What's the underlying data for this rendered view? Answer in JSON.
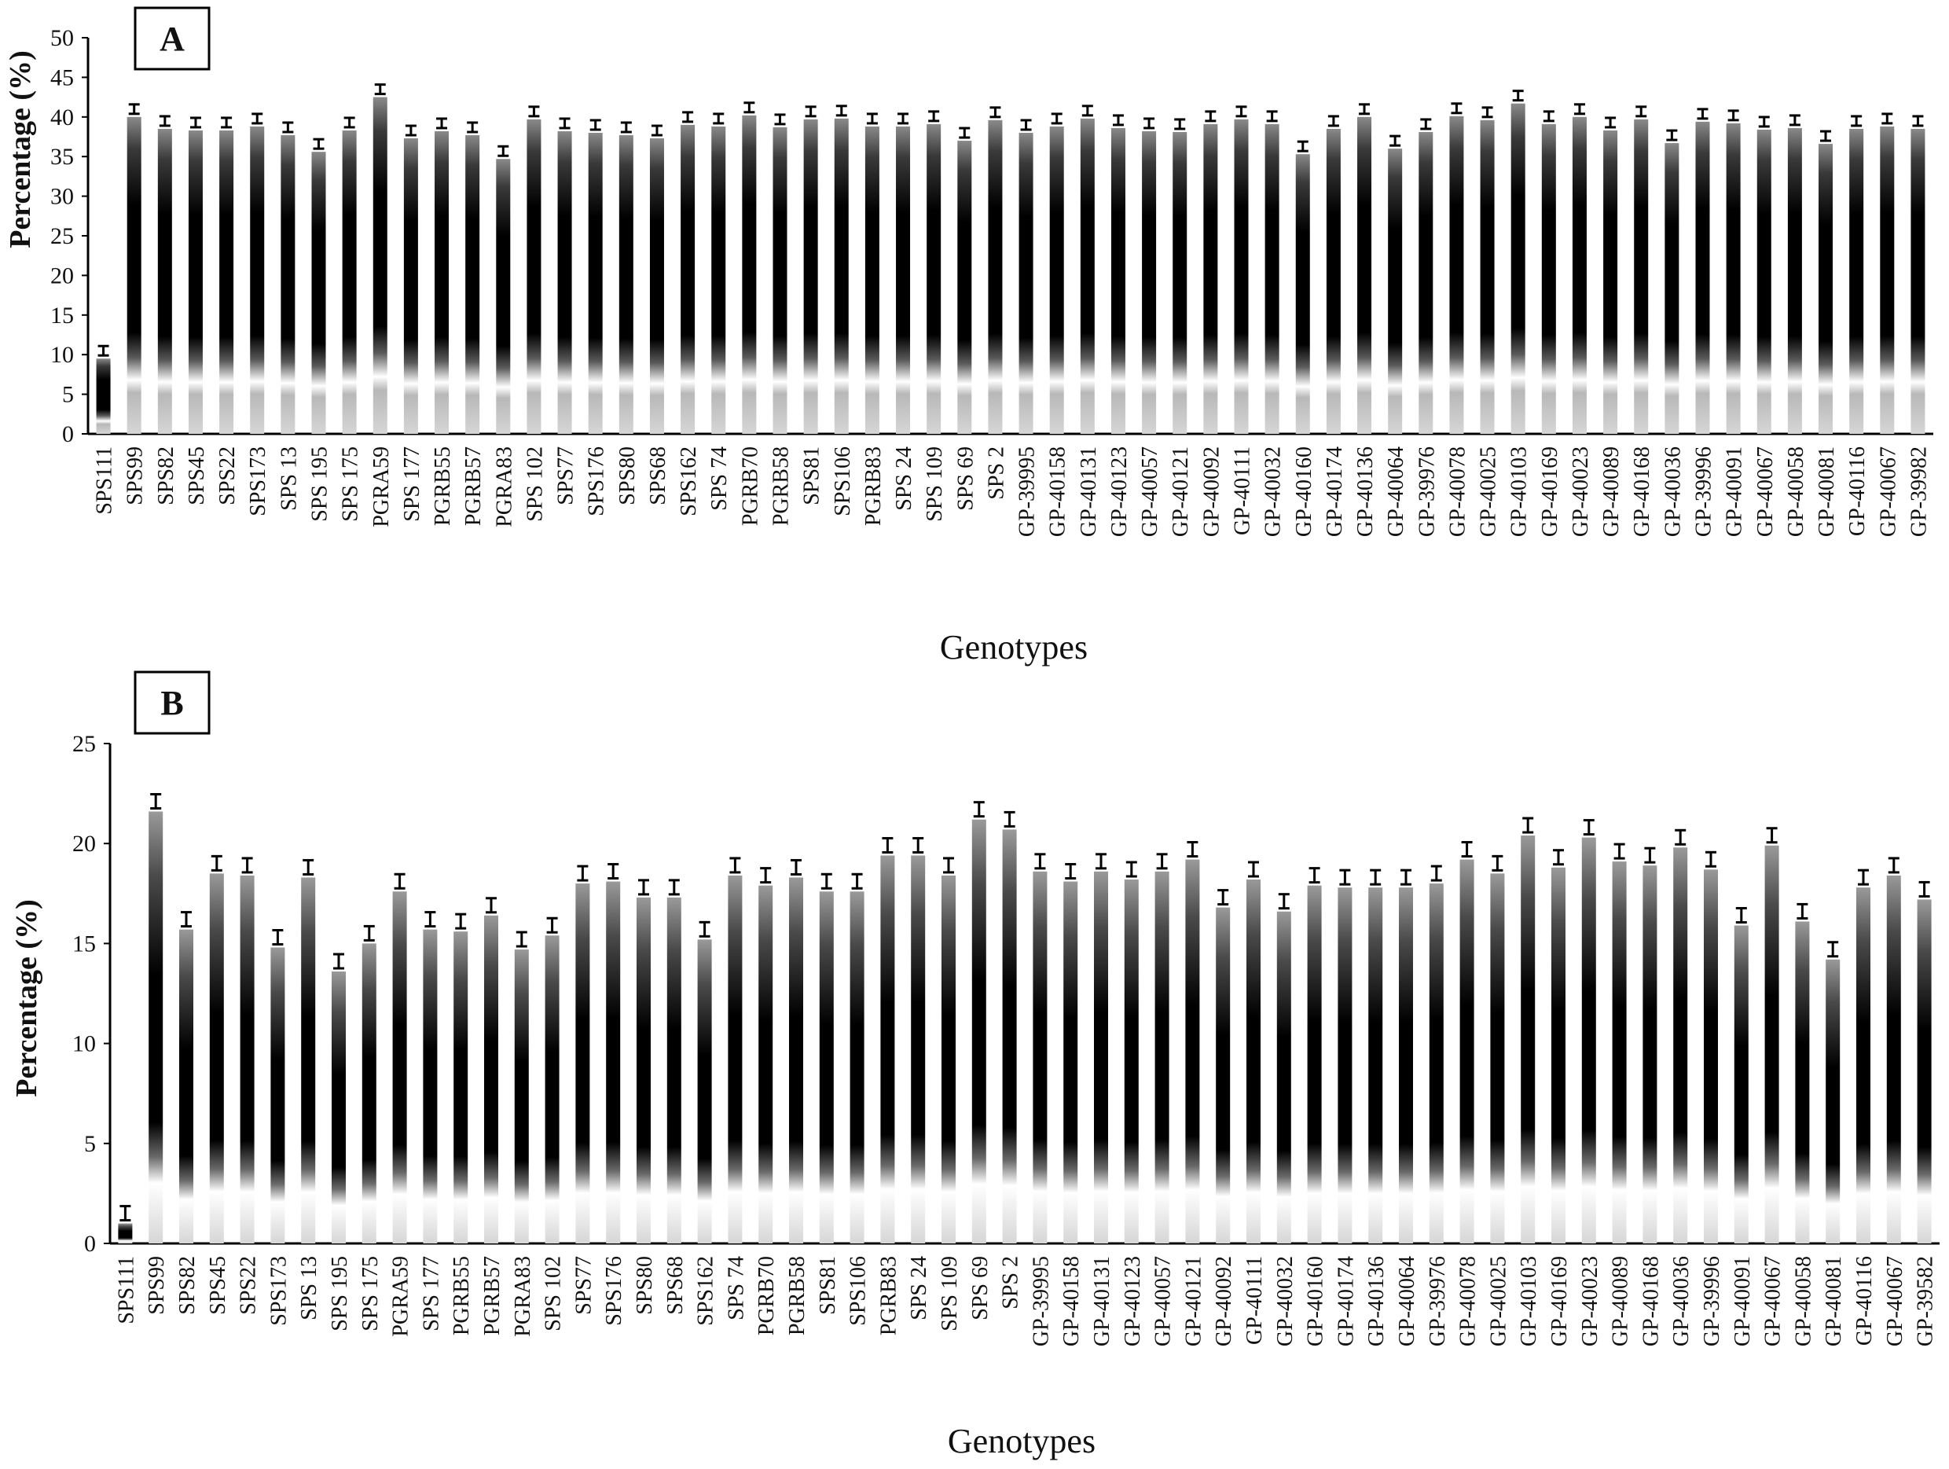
{
  "chart_data": [
    {
      "type": "bar",
      "panel_label": "A",
      "xlabel": "Genotypes",
      "ylabel": "Percentage (%)",
      "ylim": [
        0,
        50
      ],
      "yticks": [
        0,
        5,
        10,
        15,
        20,
        25,
        30,
        35,
        40,
        45,
        50
      ],
      "categories": [
        "SPS111",
        "SPS99",
        "SPS82",
        "SPS45",
        "SPS22",
        "SPS173",
        "SPS 13",
        "SPS 195",
        "SPS 175",
        "PGRA59",
        "SPS 177",
        "PGRB55",
        "PGRB57",
        "PGRA83",
        "SPS 102",
        "SPS77",
        "SPS176",
        "SPS80",
        "SPS68",
        "SPS162",
        "SPS 74",
        "PGRB70",
        "PGRB58",
        "SPS81",
        "SPS106",
        "PGRB83",
        "SPS 24",
        "SPS 109",
        "SPS 69",
        "SPS 2",
        "GP-39995",
        "GP-40158",
        "GP-40131",
        "GP-40123",
        "GP-40057",
        "GP-40121",
        "GP-40092",
        "GP-40111",
        "GP-40032",
        "GP-40160",
        "GP-40174",
        "GP-40136",
        "GP-40064",
        "GP-39976",
        "GP-40078",
        "GP-40025",
        "GP-40103",
        "GP-40169",
        "GP-40023",
        "GP-40089",
        "GP-40168",
        "GP-40036",
        "GP-39996",
        "GP-40091",
        "GP-40067",
        "GP-40058",
        "GP-40081",
        "GP-40116",
        "GP-40067",
        "GP-39982"
      ],
      "values": [
        9.5,
        40,
        38.5,
        38.3,
        38.3,
        38.8,
        37.7,
        35.6,
        38.3,
        42.5,
        37.3,
        38.2,
        37.7,
        34.7,
        39.7,
        38.2,
        38.0,
        37.7,
        37.3,
        39.0,
        38.8,
        40.2,
        38.7,
        39.7,
        39.8,
        38.8,
        38.8,
        39.1,
        37.0,
        39.6,
        38.0,
        38.8,
        39.8,
        38.6,
        38.2,
        38.1,
        39.1,
        39.7,
        39.1,
        35.3,
        38.5,
        40.0,
        36.0,
        38.1,
        40.1,
        39.6,
        41.7,
        39.1,
        40.0,
        38.3,
        39.7,
        36.7,
        39.4,
        39.2,
        38.4,
        38.6,
        36.6,
        38.5,
        38.8,
        38.5
      ]
    },
    {
      "type": "bar",
      "panel_label": "B",
      "xlabel": "Genotypes",
      "ylabel": "Percentage (%)",
      "ylim": [
        0,
        25
      ],
      "yticks": [
        0,
        5,
        10,
        15,
        20,
        25
      ],
      "categories": [
        "SPS111",
        "SPS99",
        "SPS82",
        "SPS45",
        "SPS22",
        "SPS173",
        "SPS 13",
        "SPS 195",
        "SPS 175",
        "PGRA59",
        "SPS 177",
        "PGRB55",
        "PGRB57",
        "PGRA83",
        "SPS 102",
        "SPS77",
        "SPS176",
        "SPS80",
        "SPS68",
        "SPS162",
        "SPS 74",
        "PGRB70",
        "PGRB58",
        "SPS81",
        "SPS106",
        "PGRB83",
        "SPS 24",
        "SPS 109",
        "SPS 69",
        "SPS 2",
        "GP-39995",
        "GP-40158",
        "GP-40131",
        "GP-40123",
        "GP-40057",
        "GP-40121",
        "GP-40092",
        "GP-40111",
        "GP-40032",
        "GP-40160",
        "GP-40174",
        "GP-40136",
        "GP-40064",
        "GP-39976",
        "GP-40078",
        "GP-40025",
        "GP-40103",
        "GP-40169",
        "GP-40023",
        "GP-40089",
        "GP-40168",
        "GP-40036",
        "GP-39996",
        "GP-40091",
        "GP-40067",
        "GP-40058",
        "GP-40081",
        "GP-40116",
        "GP-40067",
        "GP-39582"
      ],
      "values": [
        1.0,
        21.6,
        15.7,
        18.5,
        18.4,
        14.8,
        18.3,
        13.6,
        15.0,
        17.6,
        15.7,
        15.6,
        16.4,
        14.7,
        15.4,
        18.0,
        18.1,
        17.3,
        17.3,
        15.2,
        18.4,
        17.9,
        18.3,
        17.6,
        17.6,
        19.4,
        19.4,
        18.4,
        21.2,
        20.7,
        18.6,
        18.1,
        18.6,
        18.2,
        18.6,
        19.2,
        16.8,
        18.2,
        16.6,
        17.9,
        17.8,
        17.8,
        17.8,
        18.0,
        19.2,
        18.5,
        20.4,
        18.8,
        20.3,
        19.1,
        18.9,
        19.8,
        18.7,
        15.9,
        19.9,
        16.1,
        14.2,
        17.8,
        18.4,
        17.2
      ]
    }
  ]
}
